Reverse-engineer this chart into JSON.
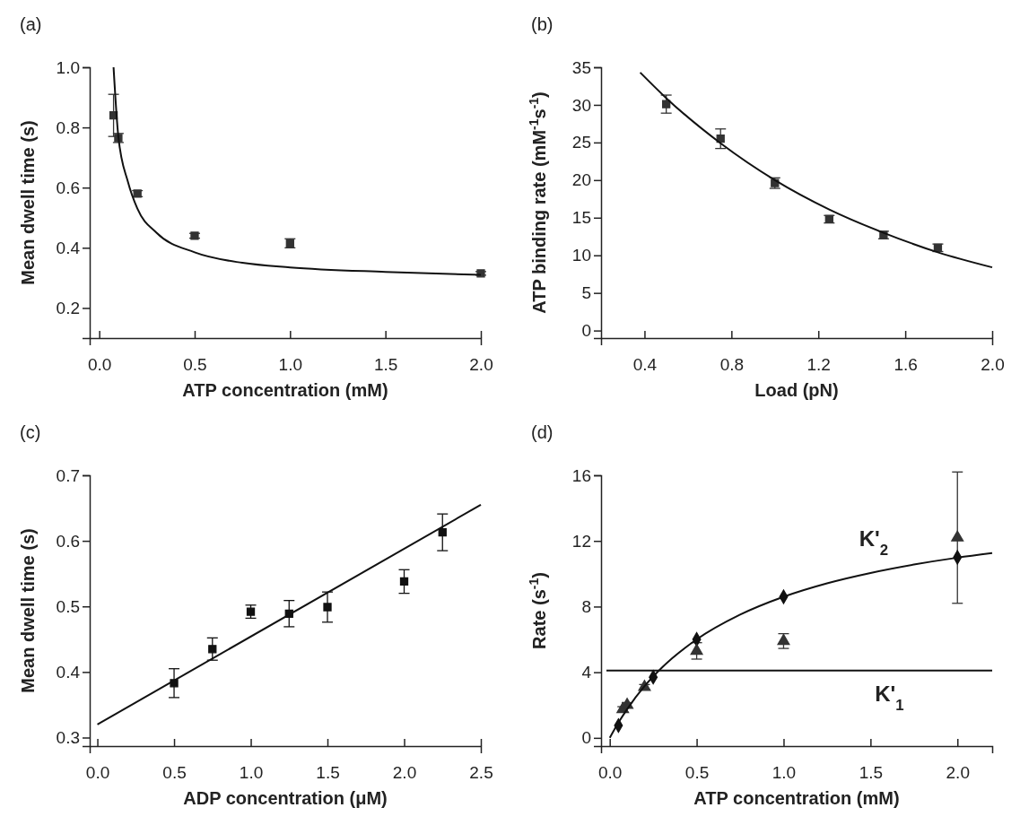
{
  "chart_data": [
    {
      "type": "scatter",
      "title": "(a)",
      "xlabel": "ATP concentration (mM)",
      "ylabel": "Mean dwell time (s)",
      "xlim": [
        -0.05,
        2.0
      ],
      "xticks": [
        {
          "value": 0,
          "label": "0.0"
        },
        0.5,
        {
          "value": 1,
          "label": "1.0"
        },
        1.5,
        {
          "value": 2,
          "label": "2.0"
        }
      ],
      "ylim": [
        0.1,
        1.0
      ],
      "yticks": [
        0.2,
        0.4,
        0.6,
        0.8,
        {
          "value": 1,
          "label": "1.0"
        }
      ],
      "series": [
        {
          "type": "scatter",
          "color": "#333333",
          "marker": "square",
          "x": [
            0.075,
            0.1,
            0.2,
            0.5,
            1.0,
            2.0
          ],
          "values": [
            0.84,
            0.765,
            0.58,
            0.44,
            0.415,
            0.315
          ],
          "errors": [
            0.07,
            0.015,
            0.01,
            0.008,
            0.015,
            0.006
          ]
        },
        {
          "type": "line",
          "color": "#111111",
          "marker": "none",
          "x": [
            0.075,
            0.1,
            0.15,
            0.2,
            0.3,
            0.5,
            0.75,
            1.0,
            1.5,
            2.0
          ],
          "values": [
            1.0,
            0.77,
            0.62,
            0.53,
            0.45,
            0.385,
            0.35,
            0.335,
            0.32,
            0.31
          ]
        }
      ]
    },
    {
      "type": "scatter",
      "title": "(b)",
      "xlabel": "Load (pN)",
      "ylabel": "ATP binding rate (mM$^{-1}$s$^{-1}$)",
      "xlim": [
        0.2,
        2.0
      ],
      "xticks": [
        0.4,
        0.8,
        1.2,
        1.6,
        {
          "value": 2,
          "label": "2.0"
        }
      ],
      "ylim": [
        -1,
        35
      ],
      "yticks": [
        0,
        5,
        10,
        15,
        20,
        25,
        30,
        35
      ],
      "series": [
        {
          "type": "scatter",
          "color": "#333333",
          "marker": "square",
          "x": [
            0.5,
            0.75,
            1.0,
            1.25,
            1.5,
            1.75
          ],
          "values": [
            30.1,
            25.5,
            19.6,
            14.8,
            12.7,
            11.0
          ],
          "errors": [
            1.2,
            1.3,
            0.7,
            0.5,
            0.5,
            0.5
          ]
        },
        {
          "type": "line",
          "color": "#111111",
          "marker": "none",
          "x": [
            0.38,
            0.5,
            0.75,
            1.0,
            1.25,
            1.5,
            1.75,
            2.0
          ],
          "values": [
            34.3,
            30.9,
            24.9,
            20.0,
            16.1,
            13.0,
            10.4,
            8.4
          ]
        }
      ]
    },
    {
      "type": "scatter",
      "title": "(c)",
      "xlabel": "ADP concentration (μM)",
      "ylabel": "Mean dwell time (s)",
      "xlim": [
        -0.05,
        2.5
      ],
      "xticks": [
        {
          "value": 0,
          "label": "0.0"
        },
        0.5,
        {
          "value": 1,
          "label": "1.0"
        },
        1.5,
        {
          "value": 2,
          "label": "2.0"
        },
        2.5
      ],
      "ylim": [
        0.287,
        0.7
      ],
      "yticks": [
        0.3,
        0.4,
        0.5,
        0.6,
        0.7
      ],
      "series": [
        {
          "type": "scatter",
          "color": "#111111",
          "marker": "square",
          "x": [
            0.5,
            0.75,
            1.0,
            1.25,
            1.5,
            2.0,
            2.25
          ],
          "values": [
            0.383,
            0.435,
            0.492,
            0.489,
            0.499,
            0.538,
            0.613
          ],
          "errors": [
            0.022,
            0.017,
            0.01,
            0.02,
            0.023,
            0.018,
            0.028
          ]
        },
        {
          "type": "line",
          "color": "#111111",
          "marker": "none",
          "x": [
            0,
            2.5
          ],
          "values": [
            0.32,
            0.655
          ]
        }
      ]
    },
    {
      "type": "scatter",
      "title": "(d)",
      "xlabel": "ATP concentration (mM)",
      "ylabel": "Rate (s$^{-1}$)",
      "xlim": [
        -0.05,
        2.2
      ],
      "xticks": [
        {
          "value": 0,
          "label": "0.0"
        },
        0.5,
        {
          "value": 1,
          "label": "1.0"
        },
        1.5,
        {
          "value": 2,
          "label": "2.0"
        }
      ],
      "ylim": [
        -0.5,
        16
      ],
      "yticks": [
        0,
        4,
        8,
        12,
        16
      ],
      "ref_lines": [
        {
          "axis": "y",
          "value": 4.1,
          "label": "K'$_{1}$",
          "color": "#111111"
        }
      ],
      "annotations": [
        "K'$_{2}$"
      ],
      "series": [
        {
          "type": "scatter",
          "color": "#111111",
          "marker": "diamond",
          "x": [
            0.05,
            0.25,
            0.5,
            1.0,
            2.0
          ],
          "values": [
            0.75,
            3.7,
            6.0,
            8.6,
            11.0
          ]
        },
        {
          "type": "scatter",
          "color": "#333333",
          "marker": "triangle",
          "x": [
            0.075,
            0.1,
            0.2,
            0.5,
            1.0,
            2.0
          ],
          "values": [
            1.75,
            2.0,
            3.1,
            5.3,
            5.9,
            12.2
          ],
          "errors": [
            0.15,
            0.15,
            0.15,
            0.5,
            0.45,
            4.0
          ]
        },
        {
          "type": "line",
          "color": "#111111",
          "marker": "none",
          "x": [
            0,
            0.05,
            0.1,
            0.2,
            0.3,
            0.5,
            0.75,
            1.0,
            1.25,
            1.5,
            1.75,
            2.0,
            2.2
          ],
          "values": [
            0,
            0.93,
            1.75,
            3.15,
            4.28,
            6.0,
            7.51,
            8.6,
            9.42,
            10.05,
            10.56,
            10.98,
            11.26
          ]
        }
      ]
    }
  ]
}
